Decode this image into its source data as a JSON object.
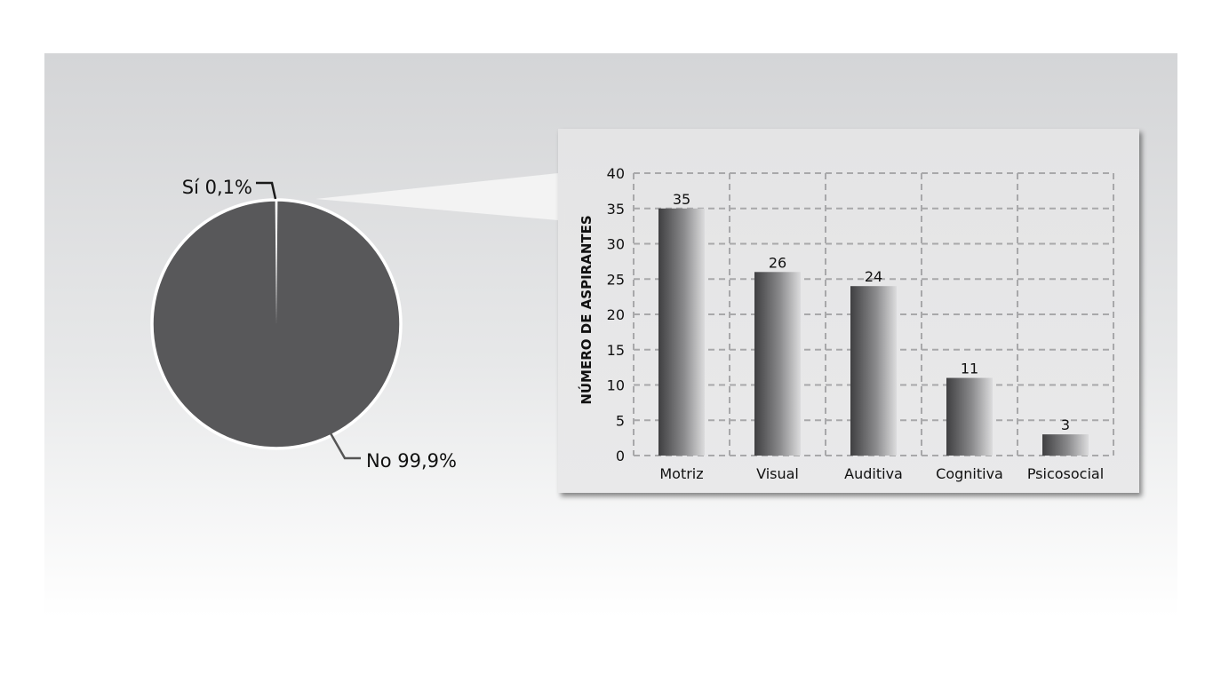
{
  "chart_data": [
    {
      "type": "pie",
      "slices": [
        {
          "label": "Sí 0,1%",
          "value": 0.1,
          "color": "#ffffff"
        },
        {
          "label": "No 99,9%",
          "value": 99.9,
          "color": "#58585a"
        }
      ]
    },
    {
      "type": "bar",
      "categories": [
        "Motriz",
        "Visual",
        "Auditiva",
        "Cognitiva",
        "Psicosocial"
      ],
      "values": [
        35,
        26,
        24,
        11,
        3
      ],
      "ylabel": "NÚMERO DE ASPIRANTES",
      "xlabel": "",
      "ylim": [
        0,
        40
      ],
      "yticks": [
        0,
        5,
        10,
        15,
        20,
        25,
        30,
        35,
        40
      ],
      "grid": true,
      "bar_color": "gradient dark-to-light grey"
    }
  ]
}
